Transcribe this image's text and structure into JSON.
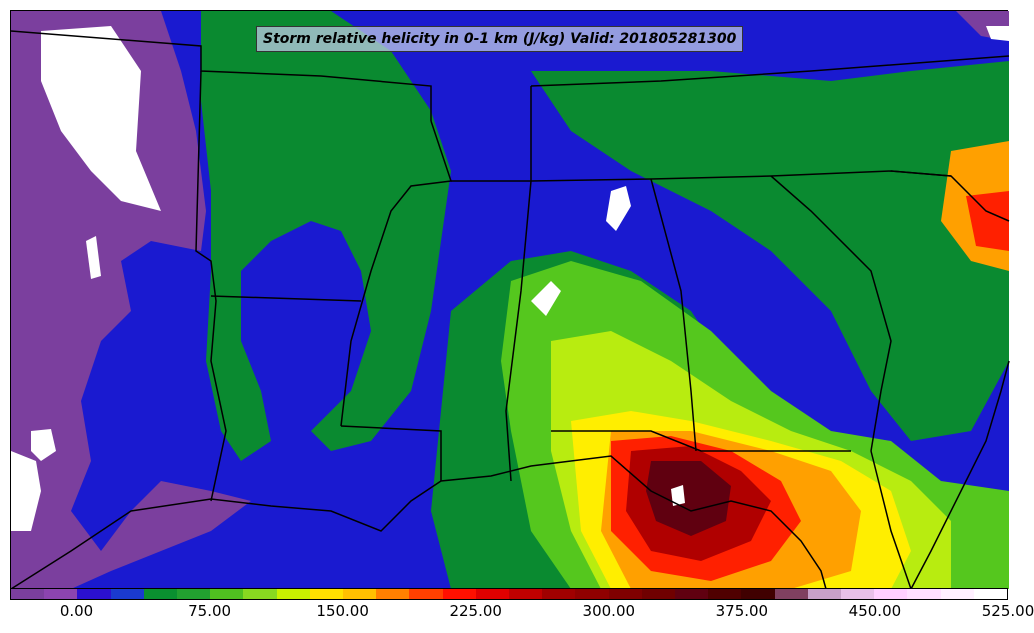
{
  "title": "Storm relative helicity in 0-1 km (J/kg) Valid: 201805281300",
  "colorbar": {
    "colors": [
      "#7b3f9e",
      "#8c44b0",
      "#2b10d0",
      "#1a3ad0",
      "#0a9030",
      "#22a030",
      "#50c020",
      "#88d820",
      "#c8f000",
      "#ffe000",
      "#ffc000",
      "#ff8000",
      "#ff4000",
      "#ff1000",
      "#e00000",
      "#c00000",
      "#a00000",
      "#900000",
      "#800000",
      "#700000",
      "#600010",
      "#500000",
      "#400000",
      "#804060",
      "#c8a0c8",
      "#e8c0e8",
      "#ffd0ff",
      "#ffe0ff",
      "#fff0ff",
      "#ffffff"
    ],
    "ticks": [
      "0.00",
      "75.00",
      "150.00",
      "225.00",
      "300.00",
      "375.00",
      "450.00",
      "525.00"
    ]
  },
  "palette": {
    "purple": "#7b3f9e",
    "blue": "#1a1ad0",
    "green_dark": "#0a8a30",
    "green_mid": "#2fb52a",
    "green_light": "#55c71e",
    "lime": "#b8ec10",
    "yellow": "#ffee00",
    "orange": "#ffa000",
    "red": "#ff2000",
    "dark_red": "#b00000",
    "maroon": "#600010",
    "white": "#ffffff"
  }
}
